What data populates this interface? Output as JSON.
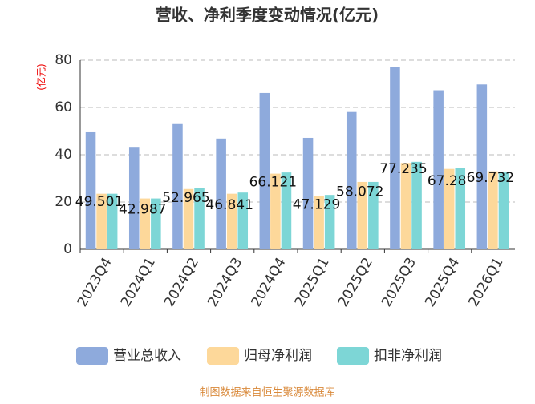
{
  "chart_data": {
    "type": "bar",
    "title": "营收、净利季度变动情况(亿元)",
    "y_label": "(亿元)",
    "categories": [
      "2023Q4",
      "2024Q1",
      "2024Q2",
      "2024Q3",
      "2024Q4",
      "2025Q1",
      "2025Q2",
      "2025Q3",
      "2025Q4",
      "2026Q1"
    ],
    "series": [
      {
        "name": "营业总收入",
        "color": "#8eaadc",
        "values": [
          49.501,
          42.987,
          52.965,
          46.841,
          66.121,
          47.129,
          58.072,
          77.235,
          67.28,
          69.732
        ]
      },
      {
        "name": "归母净利润",
        "color": "#fdd89a",
        "values": [
          23.5,
          21.5,
          25.5,
          23.5,
          32,
          22.5,
          28.5,
          36.5,
          34,
          33
        ]
      },
      {
        "name": "扣非净利润",
        "color": "#7dd6d6",
        "values": [
          23.5,
          21.5,
          26,
          24,
          32.5,
          23,
          28.5,
          37,
          34.5,
          32.5
        ]
      }
    ],
    "ylim": [
      0,
      80
    ],
    "yticks": [
      0,
      20,
      40,
      60,
      80
    ],
    "grid": true,
    "source": "制图数据来自恒生聚源数据库"
  }
}
